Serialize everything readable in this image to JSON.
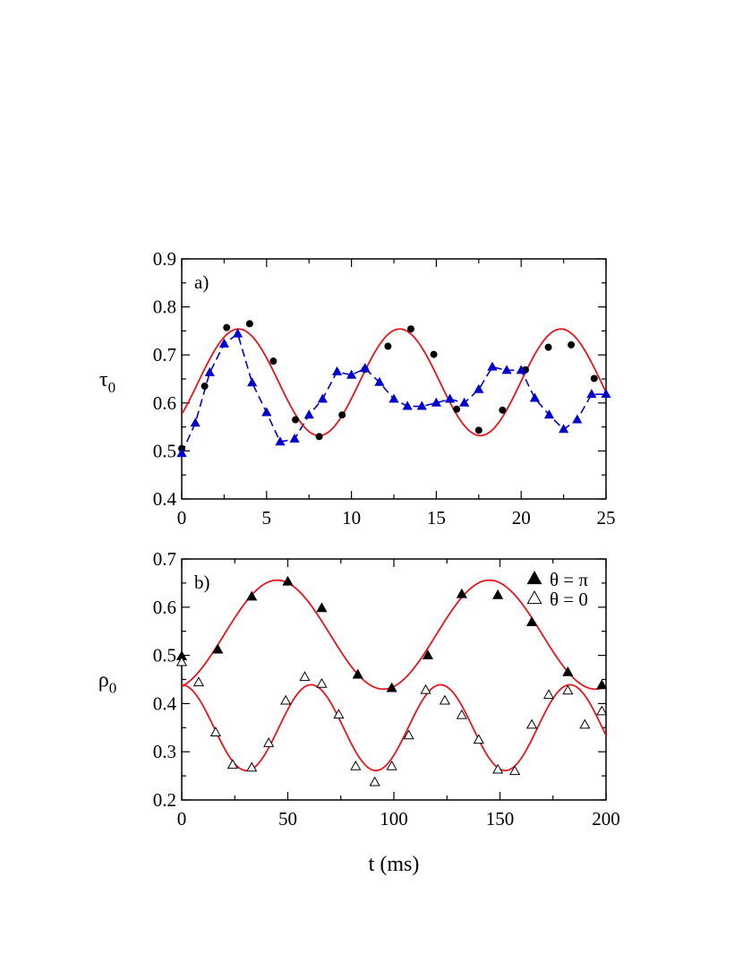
{
  "chart_data": [
    {
      "type": "scatter",
      "panel_label": "a)",
      "ylabel": "τ",
      "ylabel_sub": "0",
      "xlabel": "",
      "xlim": [
        0,
        25
      ],
      "ylim": [
        0.4,
        0.9
      ],
      "xticks": [
        0,
        5,
        10,
        15,
        20,
        25
      ],
      "yticks": [
        0.4,
        0.5,
        0.6,
        0.7,
        0.8,
        0.9
      ],
      "xtick_labels": [
        "0",
        "5",
        "10",
        "15",
        "20",
        "25"
      ],
      "ytick_labels": [
        "0.4",
        "0.5",
        "0.6",
        "0.7",
        "0.8",
        "0.9"
      ],
      "grid": false,
      "series": [
        {
          "kind": "scatter",
          "marker": "circle",
          "color": "#000000",
          "x": [
            0.0,
            1.35,
            2.65,
            4.0,
            5.4,
            6.7,
            8.1,
            9.45,
            10.8,
            12.15,
            13.5,
            14.85,
            16.2,
            17.5,
            18.9,
            20.25,
            21.6,
            22.95,
            24.3
          ],
          "y": [
            0.505,
            0.635,
            0.757,
            0.765,
            0.687,
            0.565,
            0.53,
            0.575,
            0.67,
            0.718,
            0.754,
            0.701,
            0.587,
            0.543,
            0.585,
            0.669,
            0.716,
            0.721,
            0.651
          ]
        },
        {
          "kind": "line",
          "marker": "triangle",
          "color": "#0000cc",
          "dashed": true,
          "x": [
            0.0,
            0.8,
            1.65,
            2.5,
            3.3,
            4.15,
            5.0,
            5.8,
            6.65,
            7.5,
            8.3,
            9.15,
            10.0,
            10.8,
            11.65,
            12.5,
            13.3,
            14.15,
            15.0,
            15.8,
            16.65,
            17.5,
            18.3,
            19.15,
            20.0,
            20.8,
            21.65,
            22.5,
            23.3,
            24.15,
            25.0
          ],
          "y": [
            0.495,
            0.558,
            0.663,
            0.723,
            0.744,
            0.642,
            0.58,
            0.519,
            0.525,
            0.575,
            0.608,
            0.665,
            0.658,
            0.672,
            0.643,
            0.608,
            0.593,
            0.593,
            0.6,
            0.608,
            0.6,
            0.628,
            0.675,
            0.668,
            0.668,
            0.61,
            0.575,
            0.545,
            0.565,
            0.618,
            0.618
          ]
        },
        {
          "kind": "fit",
          "color": "#e8141e",
          "model": "sine",
          "mean": 0.643,
          "amplitude": 0.111,
          "period": 9.5,
          "phase_x": 0.97,
          "x_range": [
            0,
            25
          ]
        }
      ]
    },
    {
      "type": "scatter",
      "panel_label": "b)",
      "ylabel": "ρ",
      "ylabel_sub": "0",
      "xlabel": "t (ms)",
      "xlim": [
        0,
        200
      ],
      "ylim": [
        0.2,
        0.7
      ],
      "xticks": [
        0,
        50,
        100,
        150,
        200
      ],
      "yticks": [
        0.2,
        0.3,
        0.4,
        0.5,
        0.6,
        0.7
      ],
      "xtick_labels": [
        "0",
        "50",
        "100",
        "150",
        "200"
      ],
      "ytick_labels": [
        "0.2",
        "0.3",
        "0.4",
        "0.5",
        "0.6",
        "0.7"
      ],
      "grid": false,
      "legend": {
        "placement": "top-right",
        "entries": [
          {
            "label": "θ = π",
            "marker": "triangle-filled"
          },
          {
            "label": "θ = 0",
            "marker": "triangle-open"
          }
        ]
      },
      "series": [
        {
          "kind": "scatter",
          "marker": "triangle-filled",
          "color": "#000000",
          "x": [
            0,
            17,
            33,
            50,
            66,
            83,
            99,
            116,
            132,
            149,
            165,
            182,
            198
          ],
          "y": [
            0.498,
            0.512,
            0.622,
            0.653,
            0.598,
            0.46,
            0.432,
            0.5,
            0.627,
            0.625,
            0.569,
            0.465,
            0.438
          ]
        },
        {
          "kind": "scatter",
          "marker": "triangle-open",
          "color": "#000000",
          "x": [
            0,
            8,
            16,
            24,
            33,
            41,
            49,
            58,
            66,
            74,
            82,
            91,
            99,
            107,
            115,
            124,
            132,
            140,
            149,
            157,
            165,
            173,
            182,
            190,
            198
          ],
          "y": [
            0.486,
            0.444,
            0.34,
            0.273,
            0.267,
            0.318,
            0.406,
            0.455,
            0.441,
            0.377,
            0.27,
            0.237,
            0.27,
            0.334,
            0.428,
            0.406,
            0.376,
            0.325,
            0.263,
            0.26,
            0.356,
            0.418,
            0.427,
            0.356,
            0.384
          ]
        },
        {
          "kind": "fit",
          "color": "#e8141e",
          "model": "cosine",
          "mean": 0.543,
          "amplitude": 0.113,
          "period": 100,
          "peak_x": 45,
          "x_range": [
            0,
            200
          ]
        },
        {
          "kind": "fit",
          "color": "#e8141e",
          "model": "cosine",
          "mean": 0.35,
          "amplitude": 0.089,
          "period": 61,
          "peak_x": 61,
          "x_range": [
            0,
            200
          ]
        }
      ]
    }
  ]
}
